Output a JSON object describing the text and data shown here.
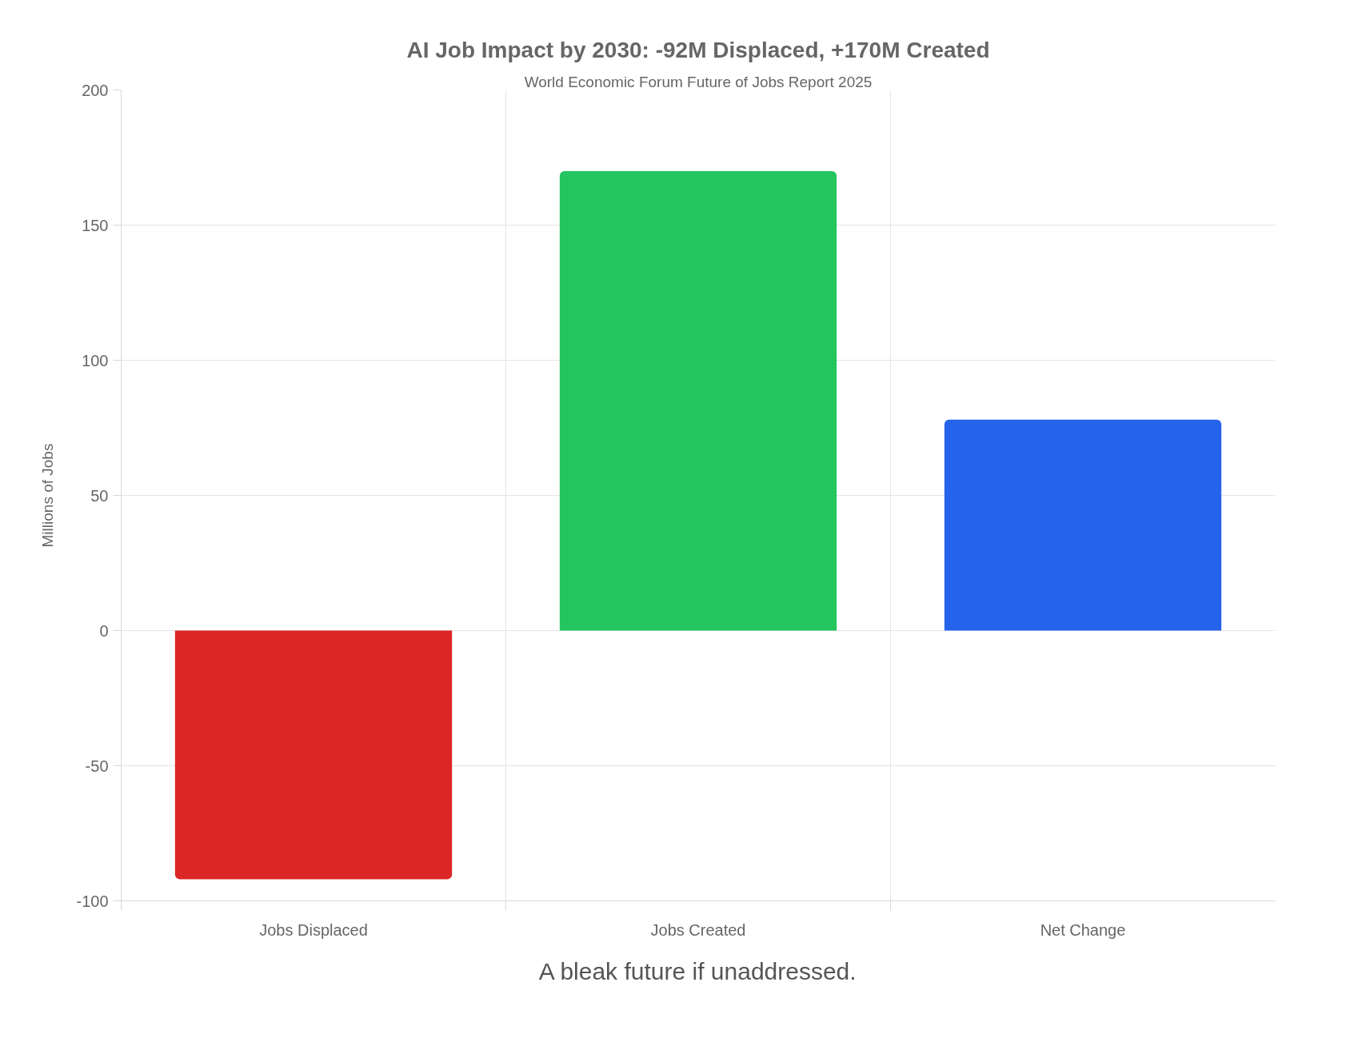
{
  "chart_data": {
    "type": "bar",
    "title": "AI Job Impact by 2030: -92M Displaced, +170M Created",
    "subtitle": "World Economic Forum Future of Jobs Report 2025",
    "ylabel": "Millions of Jobs",
    "categories": [
      "Jobs Displaced",
      "Jobs Created",
      "Net Change"
    ],
    "values": [
      -92,
      170,
      78
    ],
    "colors": [
      "#dc2626",
      "#22c55e",
      "#2563eb"
    ],
    "ylim": [
      -100,
      200
    ],
    "yticks": [
      -100,
      -50,
      0,
      50,
      100,
      150,
      200
    ],
    "grid": true,
    "annotations": [
      "A bleak future if unaddressed."
    ]
  }
}
